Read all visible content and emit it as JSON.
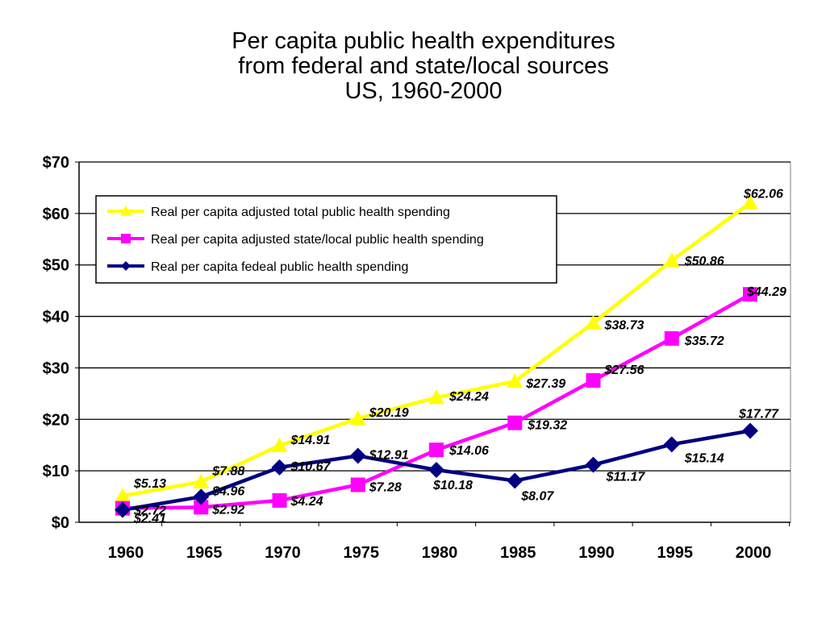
{
  "chart_data": {
    "type": "line",
    "title_lines": [
      "Per capita public health expenditures",
      "from federal and state/local sources",
      "US, 1960-2000"
    ],
    "xlabel": "",
    "ylabel": "",
    "x": [
      "1960",
      "1965",
      "1970",
      "1975",
      "1980",
      "1985",
      "1990",
      "1995",
      "2000"
    ],
    "ylim": [
      0,
      70
    ],
    "yticks": [
      0,
      10,
      20,
      30,
      40,
      50,
      60,
      70
    ],
    "ytick_labels": [
      "$0",
      "$10",
      "$20",
      "$30",
      "$40",
      "$50",
      "$60",
      "$70"
    ],
    "grid": "horizontal",
    "legend_position": "top-left",
    "series": [
      {
        "name": "Real per capita adjusted total public health spending",
        "color": "#ffff00",
        "marker": "triangle",
        "values": [
          5.13,
          7.88,
          14.91,
          20.19,
          24.24,
          27.39,
          38.73,
          50.86,
          62.06
        ],
        "labels": [
          "$5.13",
          "$7.88",
          "$14.91",
          "$20.19",
          "$24.24",
          "$27.39",
          "$38.73",
          "$50.86",
          "$62.06"
        ]
      },
      {
        "name": "Real per capita adjusted state/local public health spending",
        "color": "#ff00ff",
        "marker": "square",
        "values": [
          2.72,
          2.92,
          4.24,
          7.28,
          14.06,
          19.32,
          27.56,
          35.72,
          44.29
        ],
        "labels": [
          "$2.72",
          "$2.92",
          "$4.24",
          "$7.28",
          "$14.06",
          "$19.32",
          "$27.56",
          "$35.72",
          "$44.29"
        ]
      },
      {
        "name": "Real per capita fedeal public health spending",
        "color": "#000080",
        "marker": "diamond",
        "values": [
          2.41,
          4.96,
          10.67,
          12.91,
          10.18,
          8.07,
          11.17,
          15.14,
          17.77
        ],
        "labels": [
          "$2.41",
          "$4.96",
          "$10.67",
          "$12.91",
          "$10.18",
          "$8.07",
          "$11.17",
          "$15.14",
          "$17.77"
        ]
      }
    ]
  }
}
